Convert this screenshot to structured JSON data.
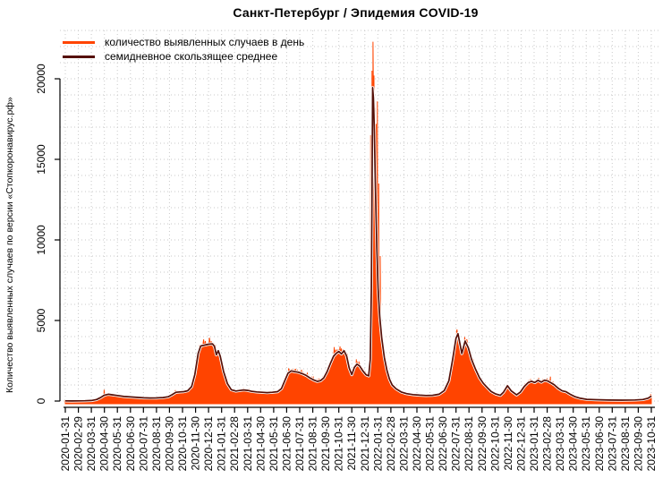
{
  "chart_data": {
    "type": "area",
    "title": "Санкт-Петербург / Эпидемия COVID-19",
    "ylabel": "Количество выявленных случаев по версии «Стопкоронавирус.рф»",
    "xlabel": "",
    "x_unit": "months_since_2020-01-31",
    "ylim": [
      0,
      23000
    ],
    "y_ticks": [
      0,
      5000,
      10000,
      15000,
      20000
    ],
    "grid": {
      "style": "dotted",
      "h_step": 1000,
      "color": "#c9c9c9",
      "vertical": "every month tick"
    },
    "legend_position": "top-left-inside",
    "x_tick_labels": [
      "2020-01-31",
      "2020-02-29",
      "2020-03-31",
      "2020-04-30",
      "2020-05-31",
      "2020-06-30",
      "2020-07-31",
      "2020-08-31",
      "2020-09-30",
      "2020-10-31",
      "2020-11-30",
      "2020-12-31",
      "2021-01-31",
      "2021-02-28",
      "2021-03-31",
      "2021-04-30",
      "2021-05-31",
      "2021-06-30",
      "2021-07-31",
      "2021-08-31",
      "2021-09-30",
      "2021-10-31",
      "2021-11-30",
      "2021-12-31",
      "2022-01-31",
      "2022-02-28",
      "2022-03-31",
      "2022-04-30",
      "2022-05-31",
      "2022-06-30",
      "2022-07-31",
      "2022-08-31",
      "2022-09-30",
      "2022-10-31",
      "2022-11-30",
      "2022-12-31",
      "2023-01-31",
      "2023-02-28",
      "2023-03-31",
      "2023-04-30",
      "2023-05-31",
      "2023-06-30",
      "2023-07-31",
      "2023-08-31",
      "2023-09-30",
      "2023-10-31"
    ],
    "series": [
      {
        "name": "количество выявленных случаев в день",
        "color": "#ff4400",
        "render": "area",
        "max_value": 22300,
        "spikes": [
          [
            2.98,
            700
          ],
          [
            8.45,
            680
          ],
          [
            17.15,
            1990
          ],
          [
            20.65,
            3350
          ],
          [
            21.1,
            3390
          ],
          [
            22.35,
            2590
          ],
          [
            23.45,
            16500
          ],
          [
            23.55,
            20500
          ],
          [
            23.63,
            22300
          ],
          [
            23.7,
            20200
          ],
          [
            23.78,
            18200
          ],
          [
            23.87,
            17200
          ],
          [
            23.96,
            18600
          ],
          [
            24.07,
            13500
          ],
          [
            24.18,
            9000
          ],
          [
            30.08,
            4440
          ],
          [
            30.67,
            3970
          ],
          [
            36.35,
            1440
          ],
          [
            37.25,
            1515
          ],
          [
            44.95,
            430
          ]
        ]
      },
      {
        "name": "семидневное скользящее среднее",
        "color": "#551008",
        "render": "line",
        "max_value": 19450,
        "points": [
          [
            0,
            10
          ],
          [
            0.5,
            8
          ],
          [
            1,
            10
          ],
          [
            1.5,
            14
          ],
          [
            2,
            35
          ],
          [
            2.4,
            95
          ],
          [
            2.7,
            210
          ],
          [
            3,
            365
          ],
          [
            3.3,
            420
          ],
          [
            3.6,
            390
          ],
          [
            4,
            345
          ],
          [
            4.5,
            285
          ],
          [
            5,
            255
          ],
          [
            5.5,
            228
          ],
          [
            6,
            200
          ],
          [
            6.5,
            190
          ],
          [
            7,
            196
          ],
          [
            7.5,
            215
          ],
          [
            7.9,
            265
          ],
          [
            8.2,
            395
          ],
          [
            8.5,
            545
          ],
          [
            8.8,
            565
          ],
          [
            9.1,
            585
          ],
          [
            9.4,
            640
          ],
          [
            9.7,
            900
          ],
          [
            9.95,
            1650
          ],
          [
            10.2,
            2950
          ],
          [
            10.4,
            3420
          ],
          [
            10.7,
            3470
          ],
          [
            11,
            3530
          ],
          [
            11.3,
            3550
          ],
          [
            11.45,
            3400
          ],
          [
            11.6,
            2870
          ],
          [
            11.75,
            3120
          ],
          [
            11.9,
            2780
          ],
          [
            12.15,
            1850
          ],
          [
            12.45,
            1080
          ],
          [
            12.75,
            700
          ],
          [
            13.1,
            625
          ],
          [
            13.4,
            655
          ],
          [
            13.7,
            690
          ],
          [
            14,
            660
          ],
          [
            14.3,
            605
          ],
          [
            14.7,
            565
          ],
          [
            15.1,
            545
          ],
          [
            15.5,
            525
          ],
          [
            15.9,
            545
          ],
          [
            16.3,
            585
          ],
          [
            16.6,
            770
          ],
          [
            16.85,
            1260
          ],
          [
            17.1,
            1730
          ],
          [
            17.35,
            1870
          ],
          [
            17.6,
            1830
          ],
          [
            17.9,
            1790
          ],
          [
            18.2,
            1700
          ],
          [
            18.5,
            1590
          ],
          [
            18.8,
            1430
          ],
          [
            19.1,
            1300
          ],
          [
            19.35,
            1220
          ],
          [
            19.6,
            1265
          ],
          [
            19.85,
            1440
          ],
          [
            20.1,
            1820
          ],
          [
            20.35,
            2320
          ],
          [
            20.6,
            2780
          ],
          [
            20.8,
            2960
          ],
          [
            21,
            3080
          ],
          [
            21.2,
            2930
          ],
          [
            21.4,
            3120
          ],
          [
            21.6,
            2800
          ],
          [
            21.8,
            2050
          ],
          [
            22,
            1640
          ],
          [
            22.2,
            2090
          ],
          [
            22.4,
            2290
          ],
          [
            22.6,
            2180
          ],
          [
            22.85,
            1870
          ],
          [
            23.1,
            1630
          ],
          [
            23.3,
            1560
          ],
          [
            23.42,
            2600
          ],
          [
            23.5,
            7000
          ],
          [
            23.56,
            13500
          ],
          [
            23.6,
            19450
          ],
          [
            23.66,
            18800
          ],
          [
            23.73,
            16800
          ],
          [
            23.82,
            13000
          ],
          [
            23.92,
            9500
          ],
          [
            24.02,
            7000
          ],
          [
            24.15,
            5200
          ],
          [
            24.3,
            3900
          ],
          [
            24.5,
            2700
          ],
          [
            24.7,
            1900
          ],
          [
            24.9,
            1350
          ],
          [
            25.1,
            1000
          ],
          [
            25.4,
            760
          ],
          [
            25.8,
            560
          ],
          [
            26.2,
            460
          ],
          [
            26.7,
            400
          ],
          [
            27.2,
            365
          ],
          [
            27.7,
            345
          ],
          [
            28.2,
            355
          ],
          [
            28.7,
            420
          ],
          [
            29.1,
            650
          ],
          [
            29.45,
            1250
          ],
          [
            29.75,
            2600
          ],
          [
            30,
            3900
          ],
          [
            30.15,
            4180
          ],
          [
            30.45,
            2950
          ],
          [
            30.7,
            3720
          ],
          [
            30.95,
            3300
          ],
          [
            31.2,
            2580
          ],
          [
            31.5,
            1980
          ],
          [
            31.8,
            1450
          ],
          [
            32.1,
            1100
          ],
          [
            32.4,
            840
          ],
          [
            32.7,
            590
          ],
          [
            33.05,
            440
          ],
          [
            33.4,
            355
          ],
          [
            33.65,
            550
          ],
          [
            33.95,
            950
          ],
          [
            34.25,
            630
          ],
          [
            34.65,
            385
          ],
          [
            34.95,
            560
          ],
          [
            35.25,
            910
          ],
          [
            35.55,
            1150
          ],
          [
            35.8,
            1230
          ],
          [
            36.05,
            1150
          ],
          [
            36.3,
            1285
          ],
          [
            36.55,
            1170
          ],
          [
            36.8,
            1295
          ],
          [
            37.05,
            1245
          ],
          [
            37.3,
            1135
          ],
          [
            37.55,
            1005
          ],
          [
            37.85,
            795
          ],
          [
            38.15,
            635
          ],
          [
            38.45,
            575
          ],
          [
            38.75,
            435
          ],
          [
            39.15,
            265
          ],
          [
            39.55,
            170
          ],
          [
            40.05,
            108
          ],
          [
            40.75,
            82
          ],
          [
            41.75,
            62
          ],
          [
            42.75,
            58
          ],
          [
            43.75,
            68
          ],
          [
            44.35,
            95
          ],
          [
            44.75,
            180
          ],
          [
            45,
            310
          ]
        ]
      }
    ]
  }
}
